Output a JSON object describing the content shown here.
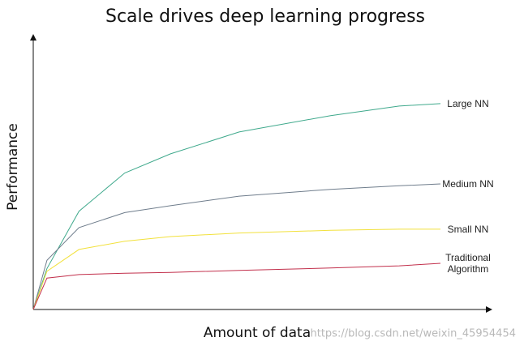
{
  "chart_data": {
    "type": "line",
    "title": "Scale drives deep learning progress",
    "x_label": "Amount of data",
    "y_label": "Performance",
    "x": [
      0,
      3,
      10,
      20,
      30,
      45,
      65,
      80,
      89
    ],
    "xlim": [
      0,
      100
    ],
    "ylim": [
      0,
      100
    ],
    "series": [
      {
        "name": "Large NN",
        "color": "#3fa98c",
        "values": [
          0,
          15,
          36,
          50,
          57,
          65,
          71,
          74.5,
          75.4
        ]
      },
      {
        "name": "Medium NN",
        "color": "#6f7d8c",
        "values": [
          0,
          18,
          30,
          35.5,
          38,
          41.5,
          44,
          45.3,
          46
        ]
      },
      {
        "name": "Small NN",
        "color": "#f2e13c",
        "values": [
          0,
          14,
          22,
          25,
          26.7,
          28,
          29,
          29.4,
          29.4
        ]
      },
      {
        "name": "Traditional Algorithm",
        "color": "#c2304c",
        "values": [
          0,
          11.5,
          12.8,
          13.3,
          13.6,
          14.3,
          15.2,
          16,
          16.9
        ]
      }
    ],
    "watermark": "https://blog.csdn.net/weixin_45954454"
  }
}
